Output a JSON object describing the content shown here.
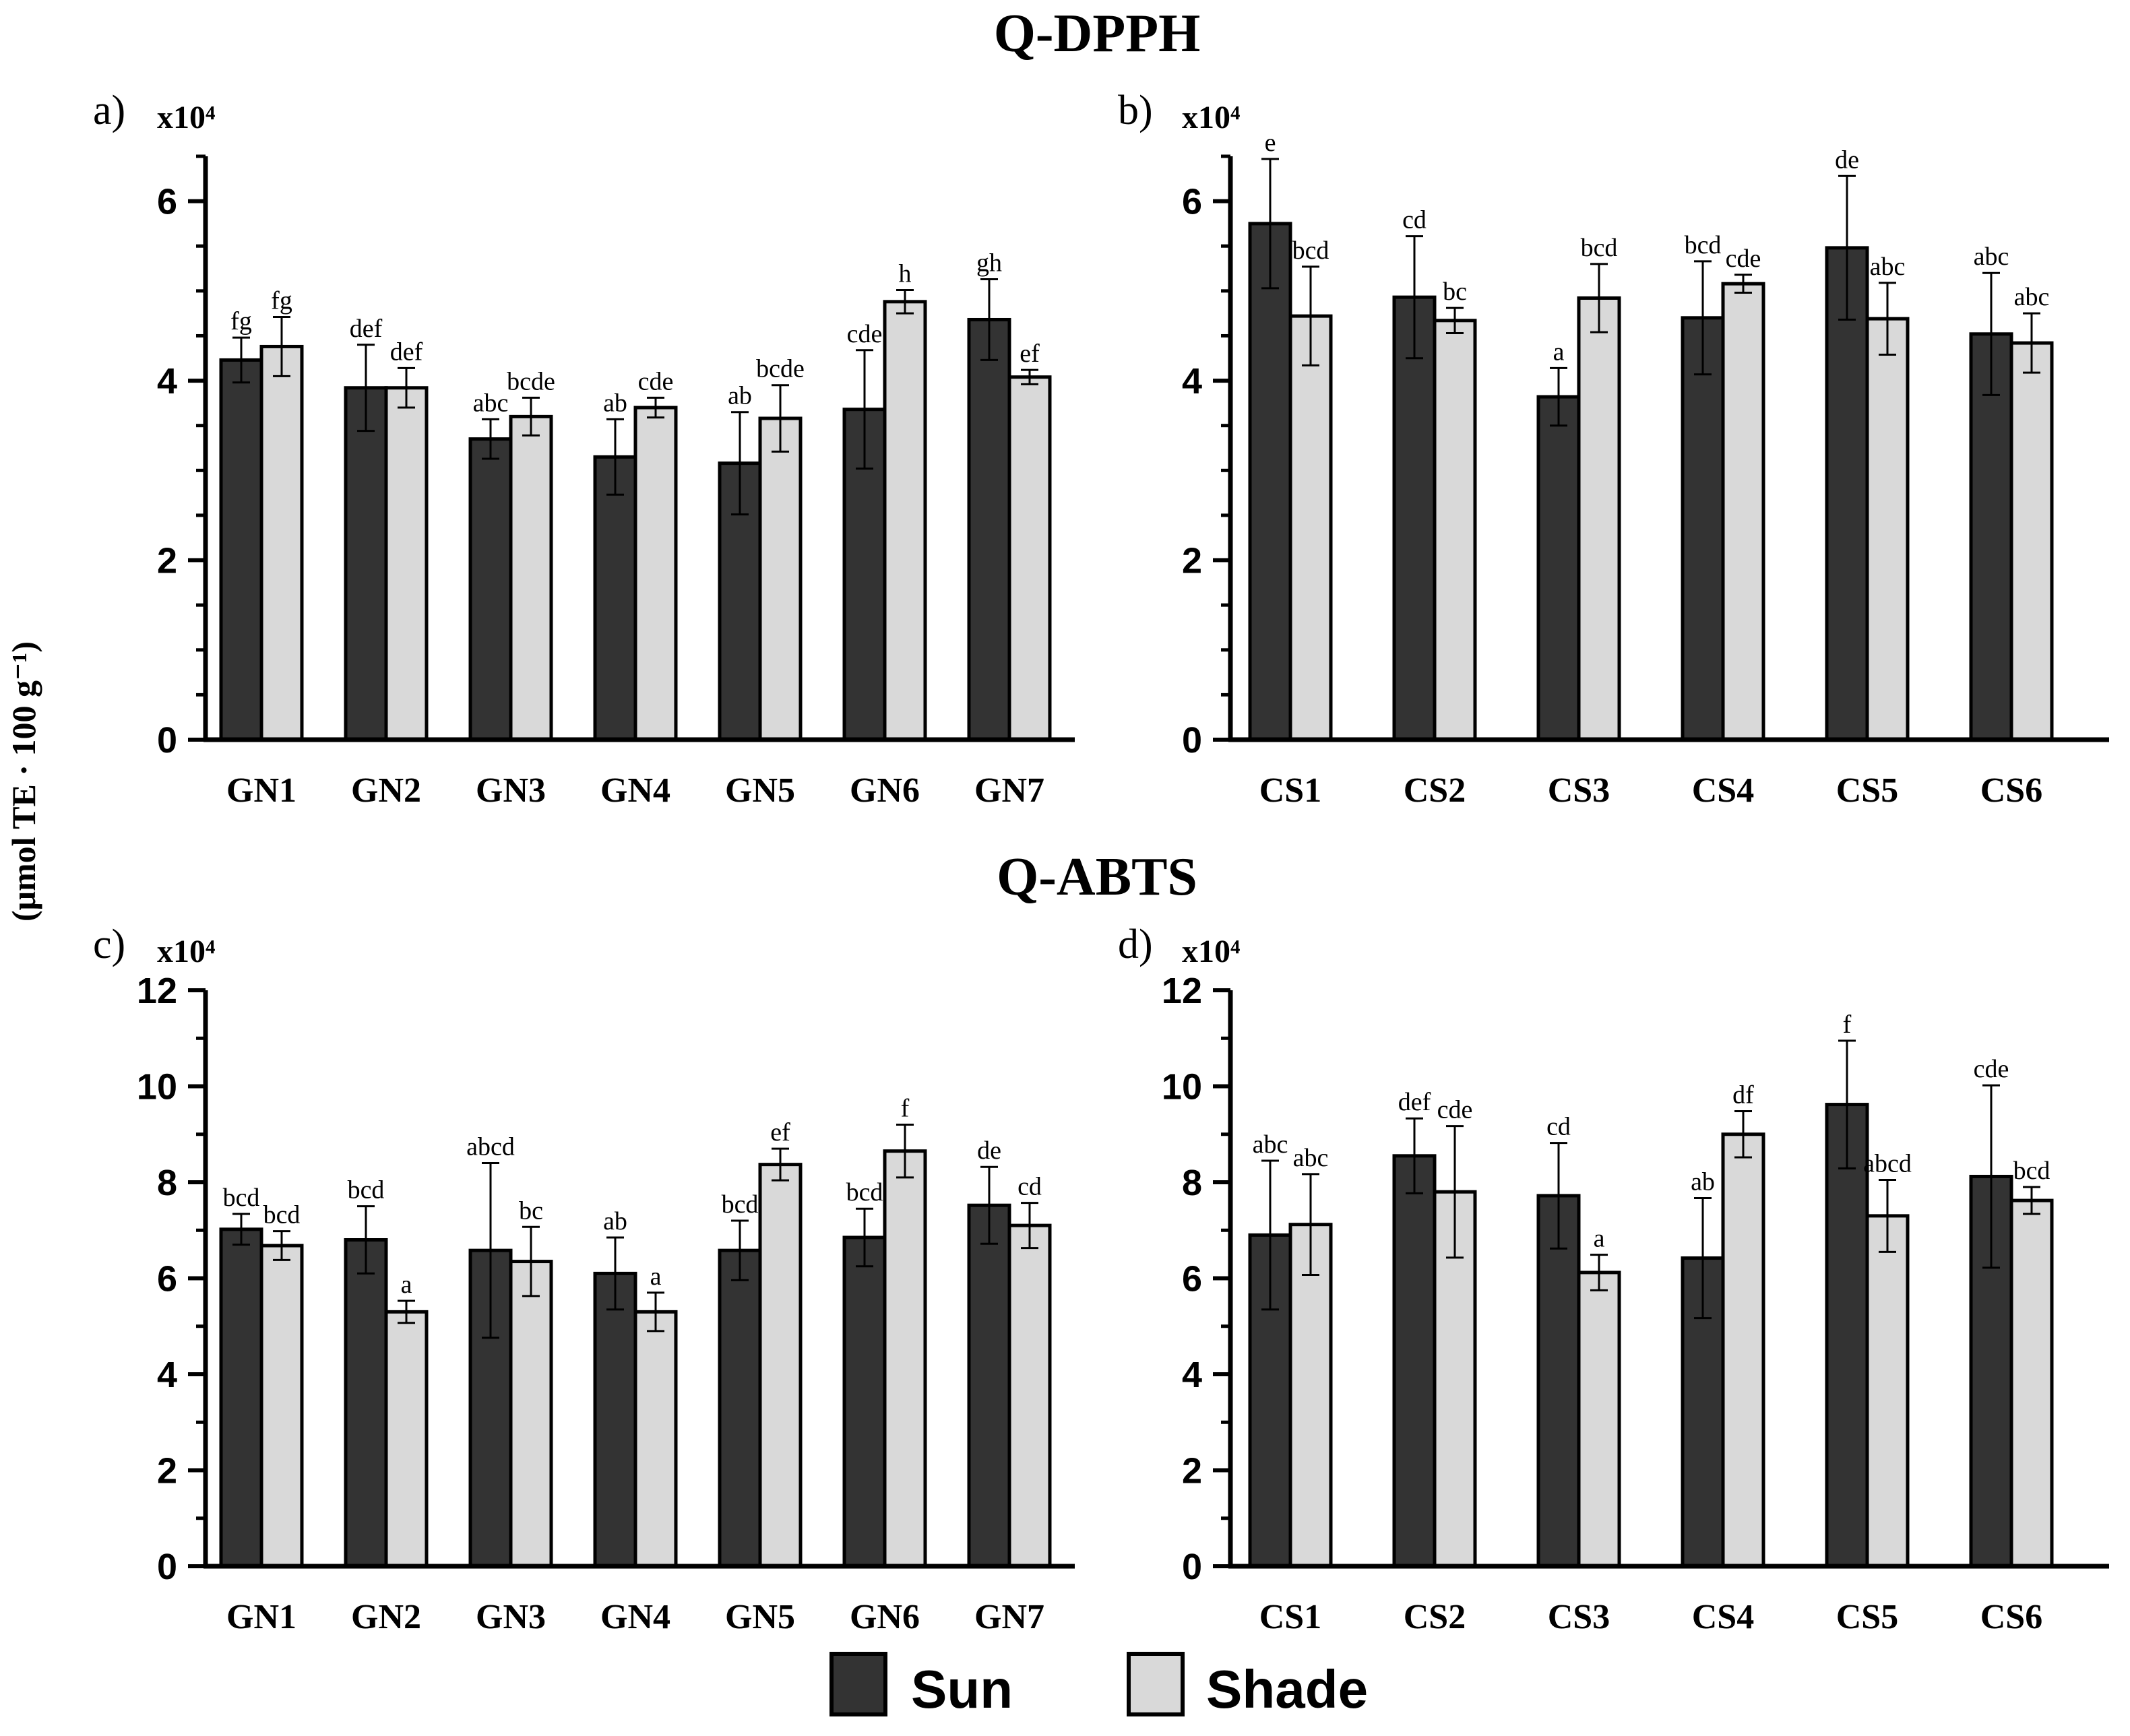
{
  "figure": {
    "y_axis_label": "(μmol TE · 100 g⁻¹)",
    "legend": [
      {
        "name": "Sun",
        "color": "#333333"
      },
      {
        "name": "Shade",
        "color": "#d9d9d9"
      }
    ]
  },
  "section_titles": [
    "Q-DPPH",
    "Q-ABTS"
  ],
  "chart_data": [
    {
      "panel": "a)",
      "section": "Q-DPPH",
      "type": "bar",
      "multiplier": "x10⁴",
      "ylim": [
        0,
        6.5
      ],
      "yticks": [
        0,
        2,
        4,
        6
      ],
      "minor_step": 0.5,
      "categories": [
        "GN1",
        "GN2",
        "GN3",
        "GN4",
        "GN5",
        "GN6",
        "GN7"
      ],
      "series": [
        {
          "name": "Sun",
          "color": "#333333",
          "values": [
            4.23,
            3.92,
            3.35,
            3.15,
            3.08,
            3.68,
            4.68
          ],
          "errors": [
            0.25,
            0.48,
            0.22,
            0.42,
            0.57,
            0.66,
            0.45
          ],
          "letters": [
            "fg",
            "def",
            "abc",
            "ab",
            "ab",
            "cde",
            "gh"
          ]
        },
        {
          "name": "Shade",
          "color": "#d9d9d9",
          "values": [
            4.38,
            3.92,
            3.6,
            3.7,
            3.58,
            4.88,
            4.04
          ],
          "errors": [
            0.33,
            0.22,
            0.21,
            0.11,
            0.37,
            0.13,
            0.08
          ],
          "letters": [
            "fg",
            "def",
            "bcde",
            "cde",
            "bcde",
            "h",
            "ef"
          ]
        }
      ]
    },
    {
      "panel": "b)",
      "section": "Q-DPPH",
      "type": "bar",
      "multiplier": "x10⁴",
      "ylim": [
        0,
        6.5
      ],
      "yticks": [
        0,
        2,
        4,
        6
      ],
      "minor_step": 0.5,
      "categories": [
        "CS1",
        "CS2",
        "CS3",
        "CS4",
        "CS5",
        "CS6"
      ],
      "series": [
        {
          "name": "Sun",
          "color": "#333333",
          "values": [
            5.75,
            4.93,
            3.82,
            4.7,
            5.48,
            4.52
          ],
          "errors": [
            0.72,
            0.68,
            0.32,
            0.63,
            0.8,
            0.68
          ],
          "letters": [
            "e",
            "cd",
            "a",
            "bcd",
            "de",
            "abc"
          ]
        },
        {
          "name": "Shade",
          "color": "#d9d9d9",
          "values": [
            4.72,
            4.67,
            4.92,
            5.08,
            4.69,
            4.42
          ],
          "errors": [
            0.55,
            0.14,
            0.38,
            0.1,
            0.4,
            0.33
          ],
          "letters": [
            "bcd",
            "bc",
            "bcd",
            "cde",
            "abc",
            "abc"
          ]
        }
      ]
    },
    {
      "panel": "c)",
      "section": "Q-ABTS",
      "type": "bar",
      "multiplier": "x10⁴",
      "ylim": [
        0,
        12
      ],
      "yticks": [
        0,
        2,
        4,
        6,
        8,
        10,
        12
      ],
      "minor_step": 1,
      "categories": [
        "GN1",
        "GN2",
        "GN3",
        "GN4",
        "GN5",
        "GN6",
        "GN7"
      ],
      "series": [
        {
          "name": "Sun",
          "color": "#333333",
          "values": [
            7.02,
            6.8,
            6.58,
            6.1,
            6.58,
            6.85,
            7.52
          ],
          "errors": [
            0.32,
            0.7,
            1.82,
            0.75,
            0.62,
            0.6,
            0.8
          ],
          "letters": [
            "bcd",
            "bcd",
            "abcd",
            "ab",
            "bcd",
            "bcd",
            "de"
          ]
        },
        {
          "name": "Shade",
          "color": "#d9d9d9",
          "values": [
            6.68,
            5.3,
            6.35,
            5.3,
            8.37,
            8.65,
            7.1
          ],
          "errors": [
            0.3,
            0.23,
            0.72,
            0.4,
            0.33,
            0.55,
            0.47
          ],
          "letters": [
            "bcd",
            "a",
            "bc",
            "a",
            "ef",
            "f",
            "cd"
          ]
        }
      ]
    },
    {
      "panel": "d)",
      "section": "Q-ABTS",
      "type": "bar",
      "multiplier": "x10⁴",
      "ylim": [
        0,
        12
      ],
      "yticks": [
        0,
        2,
        4,
        6,
        8,
        10,
        12
      ],
      "minor_step": 1,
      "categories": [
        "CS1",
        "CS2",
        "CS3",
        "CS4",
        "CS5",
        "CS6"
      ],
      "series": [
        {
          "name": "Sun",
          "color": "#333333",
          "values": [
            6.9,
            8.55,
            7.72,
            6.42,
            9.62,
            8.12
          ],
          "errors": [
            1.55,
            0.78,
            1.1,
            1.25,
            1.33,
            1.9
          ],
          "letters": [
            "abc",
            "def",
            "cd",
            "ab",
            "f",
            "cde"
          ]
        },
        {
          "name": "Shade",
          "color": "#d9d9d9",
          "values": [
            7.12,
            7.8,
            6.12,
            9.0,
            7.3,
            7.62
          ],
          "errors": [
            1.05,
            1.37,
            0.37,
            0.48,
            0.75,
            0.28
          ],
          "letters": [
            "abc",
            "cde",
            "a",
            "df",
            "abcd",
            "bcd"
          ]
        }
      ]
    }
  ]
}
